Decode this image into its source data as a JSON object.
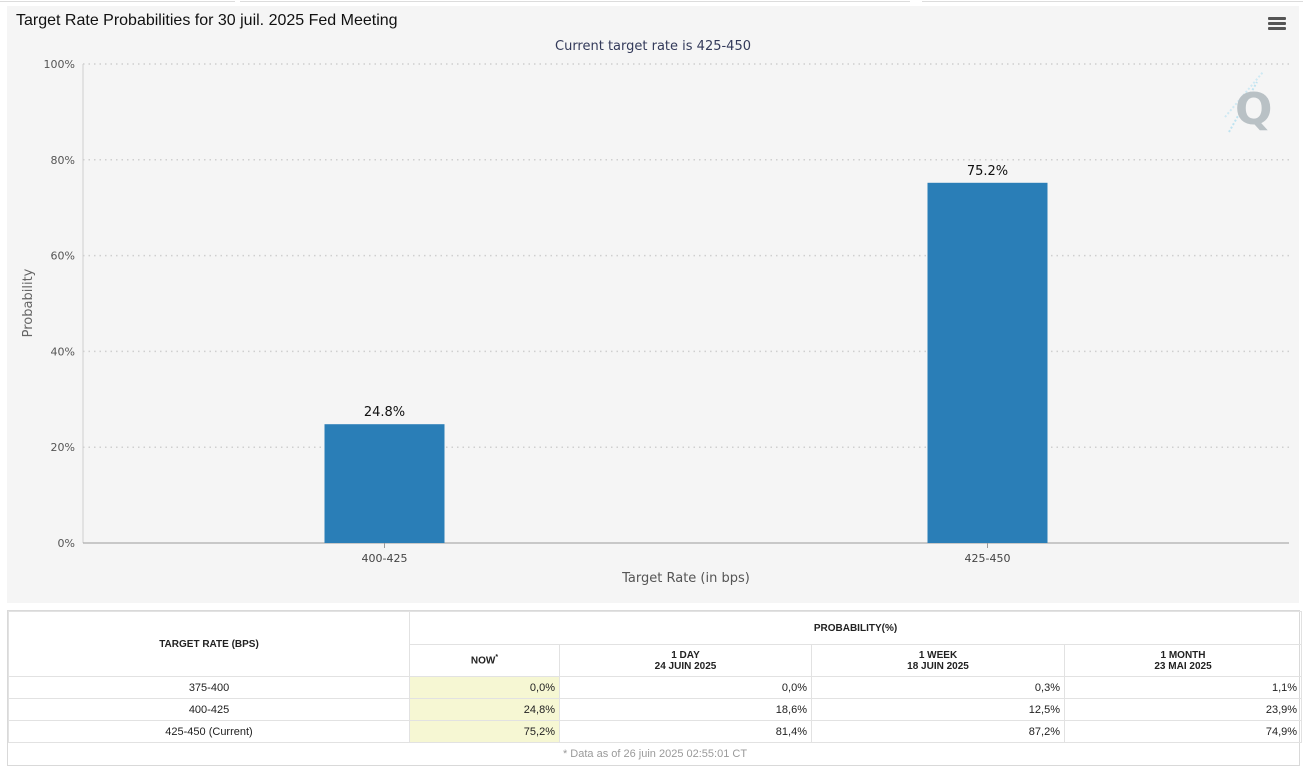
{
  "chart": {
    "title": "Target Rate Probabilities for 30 juil. 2025 Fed Meeting",
    "subtitle": "Current target rate is 425-450"
  },
  "chart_data": {
    "type": "bar",
    "categories": [
      "400-425",
      "425-450"
    ],
    "values": [
      24.8,
      75.2
    ],
    "data_labels": [
      "24.8%",
      "75.2%"
    ],
    "xlabel": "Target Rate (in bps)",
    "ylabel": "Probability",
    "ylim": [
      0,
      100
    ],
    "yticks": [
      "0%",
      "20%",
      "40%",
      "60%",
      "80%",
      "100%"
    ],
    "ytick_values": [
      0,
      20,
      40,
      60,
      80,
      100
    ],
    "grid": true,
    "bar_color": "#2a7eb7"
  },
  "table": {
    "header_rate": "TARGET RATE (BPS)",
    "header_prob": "PROBABILITY(%)",
    "col_now": "NOW",
    "col_now_mark": "*",
    "col_day_title": "1 DAY",
    "col_day_date": "24 JUIN 2025",
    "col_week_title": "1 WEEK",
    "col_week_date": "18 JUIN 2025",
    "col_month_title": "1 MONTH",
    "col_month_date": "23 MAI 2025",
    "rows": [
      {
        "rate": "375-400",
        "now": "0,0%",
        "day": "0,0%",
        "week": "0,3%",
        "month": "1,1%"
      },
      {
        "rate": "400-425",
        "now": "24,8%",
        "day": "18,6%",
        "week": "12,5%",
        "month": "23,9%"
      },
      {
        "rate": "425-450 (Current)",
        "now": "75,2%",
        "day": "81,4%",
        "week": "87,2%",
        "month": "74,9%"
      }
    ],
    "note": "* Data as of 26 juin 2025 02:55:01 CT"
  },
  "colors": {
    "accent": "#2a7eb7",
    "now_highlight": "#f6f7d3",
    "panel_bg": "#f5f5f5"
  },
  "icons": {
    "menu": "hamburger-menu-icon",
    "watermark": "quikstrike-q-logo"
  }
}
